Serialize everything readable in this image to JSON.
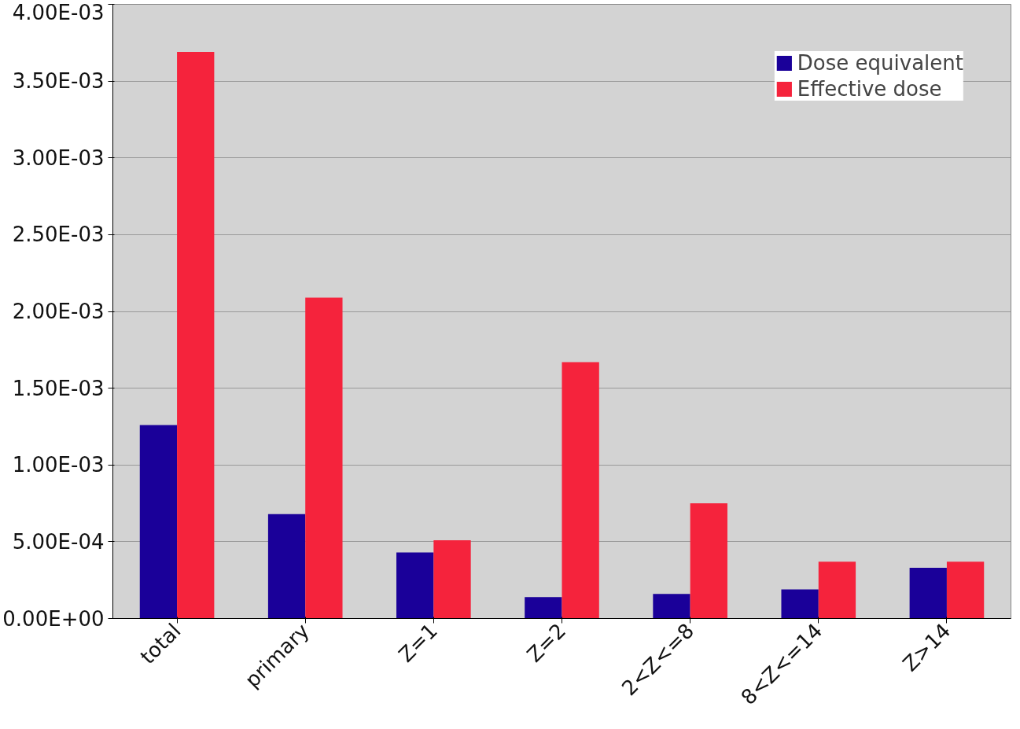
{
  "chart_data": {
    "type": "bar",
    "categories": [
      "total",
      "primary",
      "Z=1",
      "Z=2",
      "2<Z<=8",
      "8<Z<=14",
      "Z>14"
    ],
    "series": [
      {
        "name": "Dose equivalent",
        "color": "#1a0099",
        "values": [
          0.00126,
          0.00068,
          0.00043,
          0.00014,
          0.00016,
          0.00019,
          0.00033
        ]
      },
      {
        "name": "Effective dose",
        "color": "#f5233c",
        "values": [
          0.00369,
          0.00209,
          0.00051,
          0.00167,
          0.00075,
          0.00037,
          0.00037
        ]
      }
    ],
    "ylim": [
      0,
      0.004
    ],
    "yticks": [
      {
        "value": 0,
        "label": "0.00E+00"
      },
      {
        "value": 0.0005,
        "label": "5.00E-04"
      },
      {
        "value": 0.001,
        "label": "1.00E-03"
      },
      {
        "value": 0.0015,
        "label": "1.50E-03"
      },
      {
        "value": 0.002,
        "label": "2.00E-03"
      },
      {
        "value": 0.0025,
        "label": "2.50E-03"
      },
      {
        "value": 0.003,
        "label": "3.00E-03"
      },
      {
        "value": 0.0035,
        "label": "3.50E-03"
      },
      {
        "value": 0.004,
        "label": "4.00E-03"
      }
    ],
    "grid": "y",
    "legend": "top right"
  }
}
